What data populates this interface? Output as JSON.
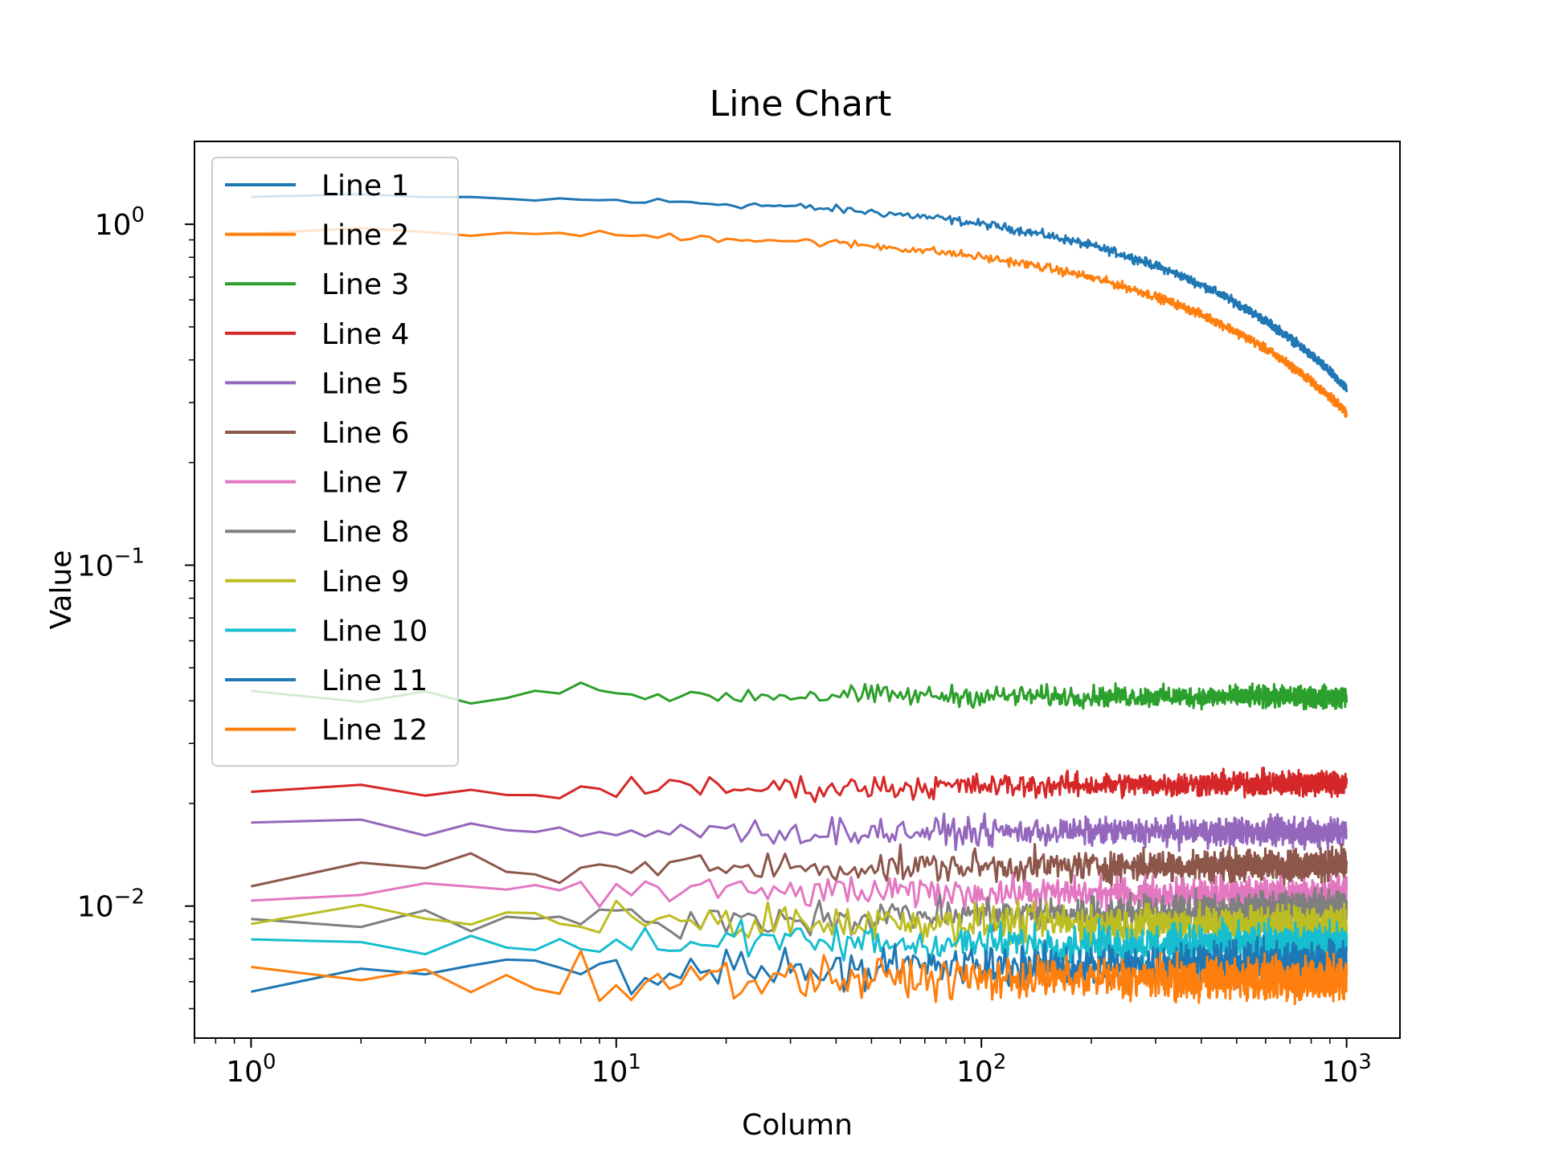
{
  "chart_data": {
    "type": "line",
    "title": "Line Chart",
    "xlabel": "Column",
    "ylabel": "Value",
    "xscale": "log",
    "yscale": "log",
    "xlim": [
      0.7,
      1400
    ],
    "ylim": [
      0.0041,
      1.75
    ],
    "x_range": [
      1,
      1000
    ],
    "x_ticks": [
      {
        "value": 1,
        "base": "10",
        "exp": "0"
      },
      {
        "value": 10,
        "base": "10",
        "exp": "1"
      },
      {
        "value": 100,
        "base": "10",
        "exp": "2"
      },
      {
        "value": 1000,
        "base": "10",
        "exp": "3"
      }
    ],
    "y_ticks": [
      {
        "value": 1,
        "base": "10",
        "exp": "0"
      },
      {
        "value": 0.1,
        "base": "10",
        "exp": "−1"
      },
      {
        "value": 0.01,
        "base": "10",
        "exp": "−2"
      }
    ],
    "grid": false,
    "legend_position": "upper-left",
    "series": [
      {
        "name": "Line 1",
        "color": "#1f77b4",
        "start": 1.2,
        "end": 0.33,
        "noise": 0.025,
        "extra_decay_x": 0
      },
      {
        "name": "Line 2",
        "color": "#ff7f0e",
        "start": 0.95,
        "end": 0.28,
        "noise": 0.025,
        "extra_decay_x": 0
      },
      {
        "name": "Line 3",
        "color": "#2ca02c",
        "start": 0.042,
        "end": 0.041,
        "noise": 0.06,
        "extra_decay_x": 0
      },
      {
        "name": "Line 4",
        "color": "#d62728",
        "start": 0.0215,
        "end": 0.023,
        "noise": 0.07,
        "extra_decay_x": 0
      },
      {
        "name": "Line 5",
        "color": "#9467bd",
        "start": 0.0165,
        "end": 0.0165,
        "noise": 0.08,
        "extra_decay_x": 0
      },
      {
        "name": "Line 6",
        "color": "#8c564b",
        "start": 0.0128,
        "end": 0.0132,
        "noise": 0.09,
        "extra_decay_x": 0
      },
      {
        "name": "Line 7",
        "color": "#e377c2",
        "start": 0.0112,
        "end": 0.0108,
        "noise": 0.09,
        "extra_decay_x": 0
      },
      {
        "name": "Line 8",
        "color": "#7f7f7f",
        "start": 0.0088,
        "end": 0.0098,
        "noise": 0.1,
        "extra_decay_x": 0
      },
      {
        "name": "Line 9",
        "color": "#bcbd22",
        "start": 0.0092,
        "end": 0.0088,
        "noise": 0.11,
        "extra_decay_x": 0
      },
      {
        "name": "Line 10",
        "color": "#17becf",
        "start": 0.0079,
        "end": 0.0077,
        "noise": 0.11,
        "extra_decay_x": 0
      },
      {
        "name": "Line 11",
        "color": "#1f77b4",
        "start": 0.0064,
        "end": 0.0068,
        "noise": 0.12,
        "extra_decay_x": 0
      },
      {
        "name": "Line 12",
        "color": "#ff7f0e",
        "start": 0.0062,
        "end": 0.0061,
        "noise": 0.12,
        "extra_decay_x": 0
      }
    ]
  }
}
